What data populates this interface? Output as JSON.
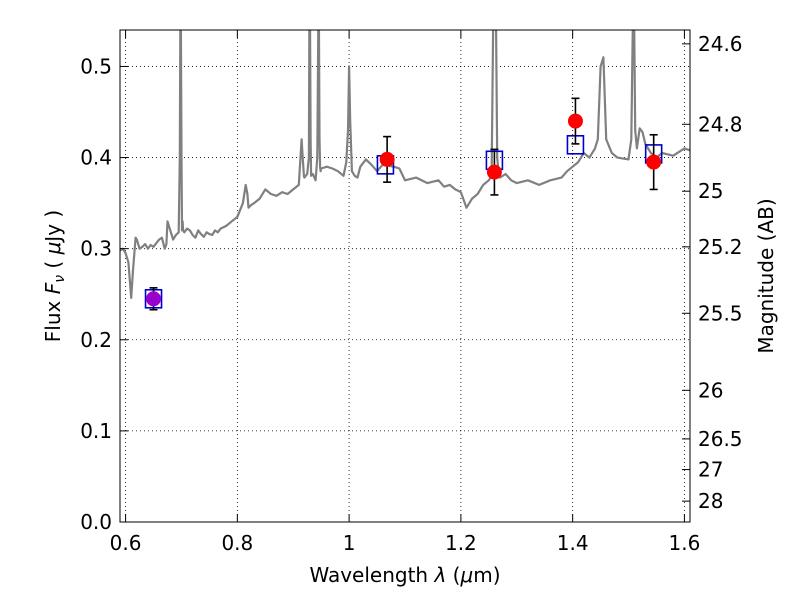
{
  "chart_data": {
    "type": "scatter",
    "title": "",
    "xlabel": {
      "prefix": "Wavelength  ",
      "symbol": "λ",
      "unit_open": " (",
      "unit_mu": "μ",
      "unit_close": "m)"
    },
    "ylabel": {
      "prefix": "Flux  ",
      "symbol": "F",
      "subscript": "ν",
      "unit_open": "  ( ",
      "unit_mu": "μ",
      "unit_close": "Jy )"
    },
    "y2label": "Magnitude (AB)",
    "xlim": [
      0.59,
      1.61
    ],
    "ylim": [
      0.0,
      0.54
    ],
    "x_ticks": [
      {
        "value": 0.6,
        "label": "0.6"
      },
      {
        "value": 0.8,
        "label": "0.8"
      },
      {
        "value": 1.0,
        "label": "1"
      },
      {
        "value": 1.2,
        "label": "1.2"
      },
      {
        "value": 1.4,
        "label": "1.4"
      },
      {
        "value": 1.6,
        "label": "1.6"
      }
    ],
    "y_ticks": [
      {
        "value": 0.0,
        "label": "0.0"
      },
      {
        "value": 0.1,
        "label": "0.1"
      },
      {
        "value": 0.2,
        "label": "0.2"
      },
      {
        "value": 0.3,
        "label": "0.3"
      },
      {
        "value": 0.4,
        "label": "0.4"
      },
      {
        "value": 0.5,
        "label": "0.5"
      }
    ],
    "y2_ticks": [
      {
        "magnitude": 24.6,
        "label": "24.6"
      },
      {
        "magnitude": 24.8,
        "label": "24.8"
      },
      {
        "magnitude": 25.0,
        "label": "25"
      },
      {
        "magnitude": 25.2,
        "label": "25.2"
      },
      {
        "magnitude": 25.5,
        "label": "25.5"
      },
      {
        "magnitude": 26.0,
        "label": "26"
      },
      {
        "magnitude": 26.5,
        "label": "26.5"
      },
      {
        "magnitude": 27.0,
        "label": "27"
      },
      {
        "magnitude": 28.0,
        "label": "28"
      }
    ],
    "grid": true,
    "colors": {
      "spectrum": "#808080",
      "model": "#0000cc",
      "observed": "#ff0000",
      "observed_uv": "#9900cc",
      "errorbar": "#000000"
    },
    "series": [
      {
        "kind": "line",
        "x": [
          0.59,
          0.595,
          0.6,
          0.605,
          0.61,
          0.613,
          0.615,
          0.618,
          0.62,
          0.625,
          0.63,
          0.635,
          0.64,
          0.645,
          0.65,
          0.66,
          0.665,
          0.67,
          0.673,
          0.675,
          0.68,
          0.685,
          0.69,
          0.695,
          0.697,
          0.698,
          0.699,
          0.7,
          0.701,
          0.702,
          0.703,
          0.705,
          0.71,
          0.715,
          0.72,
          0.725,
          0.73,
          0.735,
          0.74,
          0.745,
          0.75,
          0.755,
          0.76,
          0.765,
          0.77,
          0.78,
          0.79,
          0.8,
          0.81,
          0.815,
          0.818,
          0.82,
          0.825,
          0.83,
          0.84,
          0.85,
          0.86,
          0.87,
          0.88,
          0.89,
          0.9,
          0.91,
          0.915,
          0.917,
          0.919,
          0.92,
          0.925,
          0.928,
          0.929,
          0.93,
          0.931,
          0.932,
          0.935,
          0.94,
          0.943,
          0.945,
          0.946,
          0.947,
          0.948,
          0.949,
          0.95,
          0.96,
          0.97,
          0.98,
          0.99,
          0.995,
          0.998,
          1.0,
          1.002,
          1.005,
          1.01,
          1.015,
          1.02,
          1.03,
          1.04,
          1.05,
          1.06,
          1.08,
          1.09,
          1.1,
          1.12,
          1.14,
          1.16,
          1.17,
          1.18,
          1.19,
          1.2,
          1.21,
          1.22,
          1.23,
          1.24,
          1.25,
          1.255,
          1.258,
          1.26,
          1.263,
          1.265,
          1.268,
          1.27,
          1.28,
          1.29,
          1.3,
          1.32,
          1.34,
          1.36,
          1.38,
          1.39,
          1.4,
          1.41,
          1.42,
          1.43,
          1.44,
          1.445,
          1.45,
          1.455,
          1.46,
          1.47,
          1.48,
          1.5,
          1.505,
          1.508,
          1.51,
          1.512,
          1.515,
          1.52,
          1.525,
          1.53,
          1.54,
          1.55,
          1.56,
          1.58,
          1.6,
          1.61
        ],
        "y": [
          0.298,
          0.3,
          0.295,
          0.285,
          0.246,
          0.275,
          0.29,
          0.312,
          0.31,
          0.3,
          0.302,
          0.305,
          0.3,
          0.304,
          0.302,
          0.31,
          0.312,
          0.3,
          0.305,
          0.33,
          0.32,
          0.31,
          0.315,
          0.318,
          0.4,
          0.56,
          0.54,
          0.4,
          0.32,
          0.33,
          0.32,
          0.318,
          0.322,
          0.32,
          0.315,
          0.312,
          0.32,
          0.316,
          0.313,
          0.318,
          0.316,
          0.315,
          0.32,
          0.318,
          0.322,
          0.325,
          0.33,
          0.335,
          0.35,
          0.37,
          0.36,
          0.345,
          0.348,
          0.35,
          0.355,
          0.365,
          0.36,
          0.358,
          0.362,
          0.36,
          0.365,
          0.37,
          0.42,
          0.4,
          0.38,
          0.378,
          0.382,
          0.4,
          0.56,
          0.555,
          0.42,
          0.38,
          0.382,
          0.375,
          0.4,
          0.56,
          0.555,
          0.42,
          0.39,
          0.385,
          0.388,
          0.39,
          0.388,
          0.385,
          0.38,
          0.395,
          0.43,
          0.5,
          0.44,
          0.385,
          0.38,
          0.378,
          0.39,
          0.398,
          0.392,
          0.385,
          0.392,
          0.39,
          0.388,
          0.375,
          0.378,
          0.372,
          0.375,
          0.368,
          0.37,
          0.365,
          0.362,
          0.345,
          0.355,
          0.36,
          0.37,
          0.375,
          0.38,
          0.56,
          0.555,
          0.54,
          0.4,
          0.38,
          0.378,
          0.382,
          0.375,
          0.372,
          0.375,
          0.37,
          0.375,
          0.378,
          0.385,
          0.39,
          0.395,
          0.405,
          0.4,
          0.41,
          0.42,
          0.5,
          0.51,
          0.42,
          0.405,
          0.4,
          0.398,
          0.42,
          0.56,
          0.555,
          0.43,
          0.41,
          0.432,
          0.428,
          0.415,
          0.405,
          0.4,
          0.405,
          0.402,
          0.41,
          0.408
        ]
      },
      {
        "kind": "model_squares",
        "x": [
          0.65,
          1.065,
          1.26,
          1.405,
          1.545
        ],
        "y": [
          0.245,
          0.392,
          0.397,
          0.414,
          0.404
        ]
      },
      {
        "kind": "observed_points",
        "x": [
          0.65,
          1.068,
          1.26,
          1.405,
          1.545
        ],
        "y": [
          0.245,
          0.398,
          0.384,
          0.44,
          0.395
        ],
        "yerr": [
          0.012,
          0.025,
          0.025,
          0.025,
          0.03
        ],
        "color_keys": [
          "observed_uv",
          "observed",
          "observed",
          "observed",
          "observed"
        ]
      }
    ]
  }
}
